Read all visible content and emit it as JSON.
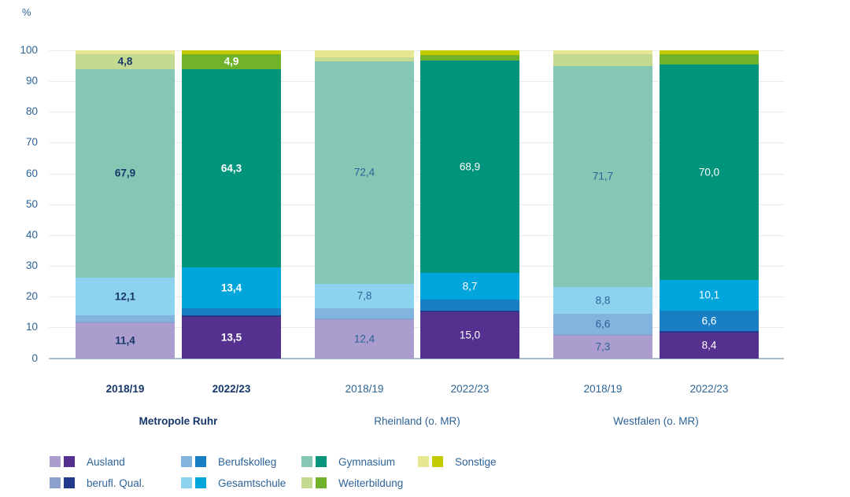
{
  "chart_data": {
    "type": "bar",
    "stacked": true,
    "unit_label": "%",
    "ylabel": "%",
    "ylim": [
      0,
      100
    ],
    "yticks": [
      0,
      10,
      20,
      30,
      40,
      50,
      60,
      70,
      80,
      90,
      100
    ],
    "grid": true,
    "series_stack_order_bottom_to_top": [
      "Ausland",
      "berufl. Qual.",
      "Berufskolleg",
      "Gesamtschule",
      "Gymnasium",
      "Weiterbildung",
      "Sonstige"
    ],
    "groups": [
      {
        "label": "Metropole Ruhr",
        "emphasis": true,
        "bars": [
          {
            "year_label": "2018/19",
            "variant": "light",
            "segments": [
              {
                "series": "Ausland",
                "value": 11.4,
                "display": "11,4"
              },
              {
                "series": "berufl. Qual.",
                "value": 0.4,
                "display": ""
              },
              {
                "series": "Berufskolleg",
                "value": 2.2,
                "display": ""
              },
              {
                "series": "Gesamtschule",
                "value": 12.1,
                "display": "12,1"
              },
              {
                "series": "Gymnasium",
                "value": 67.9,
                "display": "67,9"
              },
              {
                "series": "Weiterbildung",
                "value": 4.8,
                "display": "4,8"
              },
              {
                "series": "Sonstige",
                "value": 1.2,
                "display": ""
              }
            ]
          },
          {
            "year_label": "2022/23",
            "variant": "dark",
            "segments": [
              {
                "series": "Ausland",
                "value": 13.5,
                "display": "13,5"
              },
              {
                "series": "berufl. Qual.",
                "value": 0.4,
                "display": ""
              },
              {
                "series": "Berufskolleg",
                "value": 2.3,
                "display": ""
              },
              {
                "series": "Gesamtschule",
                "value": 13.4,
                "display": "13,4"
              },
              {
                "series": "Gymnasium",
                "value": 64.3,
                "display": "64,3"
              },
              {
                "series": "Weiterbildung",
                "value": 4.9,
                "display": "4,9"
              },
              {
                "series": "Sonstige",
                "value": 1.2,
                "display": ""
              }
            ]
          }
        ]
      },
      {
        "label": "Rheinland (o. MR)",
        "emphasis": false,
        "bars": [
          {
            "year_label": "2018/19",
            "variant": "light",
            "segments": [
              {
                "series": "Ausland",
                "value": 12.4,
                "display": "12,4"
              },
              {
                "series": "berufl. Qual.",
                "value": 0.4,
                "display": ""
              },
              {
                "series": "Berufskolleg",
                "value": 3.5,
                "display": ""
              },
              {
                "series": "Gesamtschule",
                "value": 7.8,
                "display": "7,8"
              },
              {
                "series": "Gymnasium",
                "value": 72.4,
                "display": "72,4"
              },
              {
                "series": "Weiterbildung",
                "value": 1.2,
                "display": ""
              },
              {
                "series": "Sonstige",
                "value": 2.3,
                "display": ""
              }
            ]
          },
          {
            "year_label": "2022/23",
            "variant": "dark",
            "segments": [
              {
                "series": "Ausland",
                "value": 15.0,
                "display": "15,0"
              },
              {
                "series": "berufl. Qual.",
                "value": 0.4,
                "display": ""
              },
              {
                "series": "Berufskolleg",
                "value": 3.6,
                "display": ""
              },
              {
                "series": "Gesamtschule",
                "value": 8.7,
                "display": "8,7"
              },
              {
                "series": "Gymnasium",
                "value": 68.9,
                "display": "68,9"
              },
              {
                "series": "Weiterbildung",
                "value": 1.9,
                "display": ""
              },
              {
                "series": "Sonstige",
                "value": 1.5,
                "display": ""
              }
            ]
          }
        ]
      },
      {
        "label": "Westfalen (o. MR)",
        "emphasis": false,
        "bars": [
          {
            "year_label": "2018/19",
            "variant": "light",
            "segments": [
              {
                "series": "Ausland",
                "value": 7.3,
                "display": "7,3"
              },
              {
                "series": "berufl. Qual.",
                "value": 0.5,
                "display": ""
              },
              {
                "series": "Berufskolleg",
                "value": 6.6,
                "display": "6,6"
              },
              {
                "series": "Gesamtschule",
                "value": 8.8,
                "display": "8,8"
              },
              {
                "series": "Gymnasium",
                "value": 71.7,
                "display": "71,7"
              },
              {
                "series": "Weiterbildung",
                "value": 3.8,
                "display": ""
              },
              {
                "series": "Sonstige",
                "value": 1.3,
                "display": ""
              }
            ]
          },
          {
            "year_label": "2022/23",
            "variant": "dark",
            "segments": [
              {
                "series": "Ausland",
                "value": 8.4,
                "display": "8,4"
              },
              {
                "series": "berufl. Qual.",
                "value": 0.4,
                "display": ""
              },
              {
                "series": "Berufskolleg",
                "value": 6.6,
                "display": "6,6"
              },
              {
                "series": "Gesamtschule",
                "value": 10.1,
                "display": "10,1"
              },
              {
                "series": "Gymnasium",
                "value": 70.0,
                "display": "70,0"
              },
              {
                "series": "Weiterbildung",
                "value": 3.2,
                "display": ""
              },
              {
                "series": "Sonstige",
                "value": 1.3,
                "display": ""
              }
            ]
          }
        ]
      }
    ]
  },
  "legend": {
    "rows": [
      [
        {
          "label": "Ausland",
          "col": 0
        },
        {
          "label": "Berufskolleg",
          "col": 1
        },
        {
          "label": "Gymnasium",
          "col": 2
        },
        {
          "label": "Sonstige",
          "col": 3
        }
      ],
      [
        {
          "label": "berufl. Qual.",
          "col": 0
        },
        {
          "label": "Gesamtschule",
          "col": 1
        },
        {
          "label": "Weiterbildung",
          "col": 2
        }
      ]
    ]
  },
  "colors": {
    "Ausland": {
      "light": "#ab9dcd",
      "dark": "#55318f"
    },
    "berufl. Qual.": {
      "light": "#8ba0cc",
      "dark": "#23398b"
    },
    "Berufskolleg": {
      "light": "#82b4de",
      "dark": "#187fc4"
    },
    "Gesamtschule": {
      "light": "#8dd2ee",
      "dark": "#00a5dc"
    },
    "Gymnasium": {
      "light": "#85c6b4",
      "dark": "#00947c"
    },
    "Weiterbildung": {
      "light": "#c4da90",
      "dark": "#70b32b"
    },
    "Sonstige": {
      "light": "#e6e693",
      "dark": "#c4ca00"
    },
    "text_slate": "#2d6397",
    "text_navy": "#17376b",
    "text_white": "#ffffff",
    "gridline": "#ebebeb",
    "axis_line": "#a9bccd"
  }
}
